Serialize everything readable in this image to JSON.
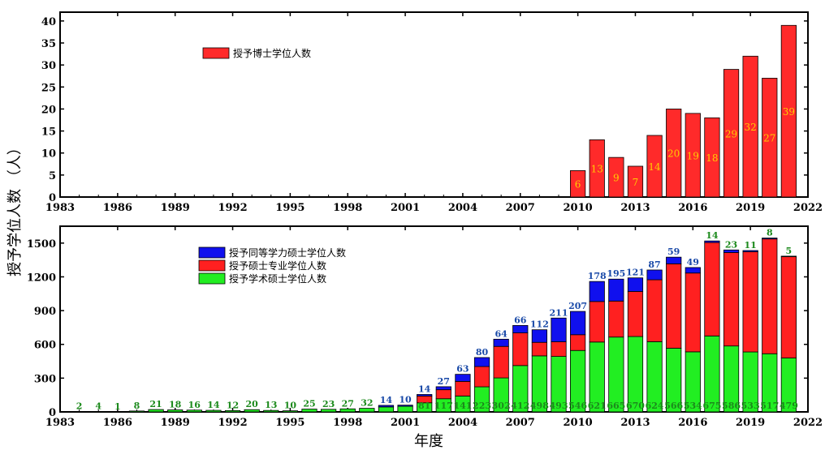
{
  "ylabel": "授予学位人数 （人）",
  "xlabel": "年度",
  "chart_data": [
    {
      "type": "bar",
      "x": [
        2010,
        2011,
        2012,
        2013,
        2014,
        2015,
        2016,
        2017,
        2018,
        2019,
        2020,
        2021
      ],
      "series": [
        {
          "name": "授予博士学位人数",
          "color": "#ff2a2a",
          "values": [
            6,
            13,
            9,
            7,
            14,
            20,
            19,
            18,
            29,
            32,
            27,
            39
          ]
        }
      ],
      "value_labels": [
        "6",
        "13",
        "9",
        "7",
        "14",
        "20",
        "19",
        "18",
        "29",
        "32",
        "27",
        "39"
      ],
      "value_label_color": "#ffcc00",
      "xlim": [
        1983,
        2022
      ],
      "ylim": [
        0,
        42
      ],
      "xticks": [
        "1983",
        "1986",
        "1989",
        "1992",
        "1995",
        "1998",
        "2001",
        "2004",
        "2007",
        "2010",
        "2013",
        "2016",
        "2019",
        "2022"
      ],
      "yticks": [
        "0",
        "5",
        "10",
        "15",
        "20",
        "25",
        "30",
        "35",
        "40"
      ],
      "legend": "top-left"
    },
    {
      "type": "bar",
      "stacked": true,
      "x": [
        1984,
        1985,
        1986,
        1987,
        1988,
        1989,
        1990,
        1991,
        1992,
        1993,
        1994,
        1995,
        1996,
        1997,
        1998,
        1999,
        2000,
        2001,
        2002,
        2003,
        2004,
        2005,
        2006,
        2007,
        2008,
        2009,
        2010,
        2011,
        2012,
        2013,
        2014,
        2015,
        2016,
        2017,
        2018,
        2019,
        2020,
        2021
      ],
      "series": [
        {
          "name": "授予学术硕士学位人数",
          "color": "#22ee22",
          "values": [
            2,
            4,
            1,
            8,
            21,
            18,
            16,
            14,
            12,
            20,
            13,
            10,
            25,
            23,
            27,
            32,
            44,
            50,
            81,
            117,
            141,
            223,
            302,
            412,
            498,
            493,
            546,
            621,
            665,
            670,
            624,
            566,
            534,
            675,
            586,
            533,
            517,
            479
          ]
        },
        {
          "name": "授予硕士专业学位人数",
          "color": "#ff2020",
          "values": [
            0,
            0,
            0,
            0,
            0,
            0,
            0,
            0,
            0,
            0,
            0,
            0,
            0,
            0,
            0,
            0,
            0,
            0,
            60,
            80,
            130,
            180,
            280,
            290,
            120,
            130,
            140,
            360,
            320,
            400,
            550,
            750,
            700,
            830,
            830,
            890,
            1020,
            900
          ]
        },
        {
          "name": "授予同等学力硕士学位人数",
          "color": "#1010ee",
          "values": [
            0,
            0,
            0,
            0,
            0,
            0,
            0,
            0,
            0,
            0,
            0,
            0,
            0,
            0,
            0,
            0,
            14,
            10,
            14,
            27,
            63,
            80,
            64,
            66,
            112,
            211,
            207,
            178,
            195,
            121,
            87,
            59,
            49,
            14,
            23,
            11,
            8,
            5
          ]
        }
      ],
      "top_labels": [
        "2",
        "4",
        "1",
        "8",
        "21",
        "18",
        "16",
        "14",
        "12",
        "20",
        "13",
        "10",
        "25",
        "23",
        "27",
        "32",
        "14",
        "10",
        "14",
        "27",
        "63",
        "80",
        "64",
        "66",
        "112",
        "211",
        "207",
        "178",
        "195",
        "121",
        "87",
        "59",
        "49",
        "14",
        "23",
        "11",
        "8",
        "5"
      ],
      "base_labels": [
        "",
        "",
        "",
        "",
        "",
        "",
        "",
        "",
        "",
        "",
        "",
        "",
        "",
        "",
        "",
        "",
        "",
        "",
        "81",
        "117",
        "141",
        "223",
        "302",
        "412",
        "498",
        "493",
        "546",
        "621",
        "665",
        "670",
        "624",
        "566",
        "534",
        "675",
        "586",
        "533",
        "517",
        "479"
      ],
      "xlim": [
        1983,
        2022
      ],
      "ylim": [
        0,
        1650
      ],
      "xticks": [
        "1983",
        "1986",
        "1989",
        "1992",
        "1995",
        "1998",
        "2001",
        "2004",
        "2007",
        "2010",
        "2013",
        "2016",
        "2019",
        "2022"
      ],
      "yticks": [
        "0",
        "300",
        "600",
        "900",
        "1200",
        "1500"
      ],
      "legend": "top-left"
    }
  ]
}
